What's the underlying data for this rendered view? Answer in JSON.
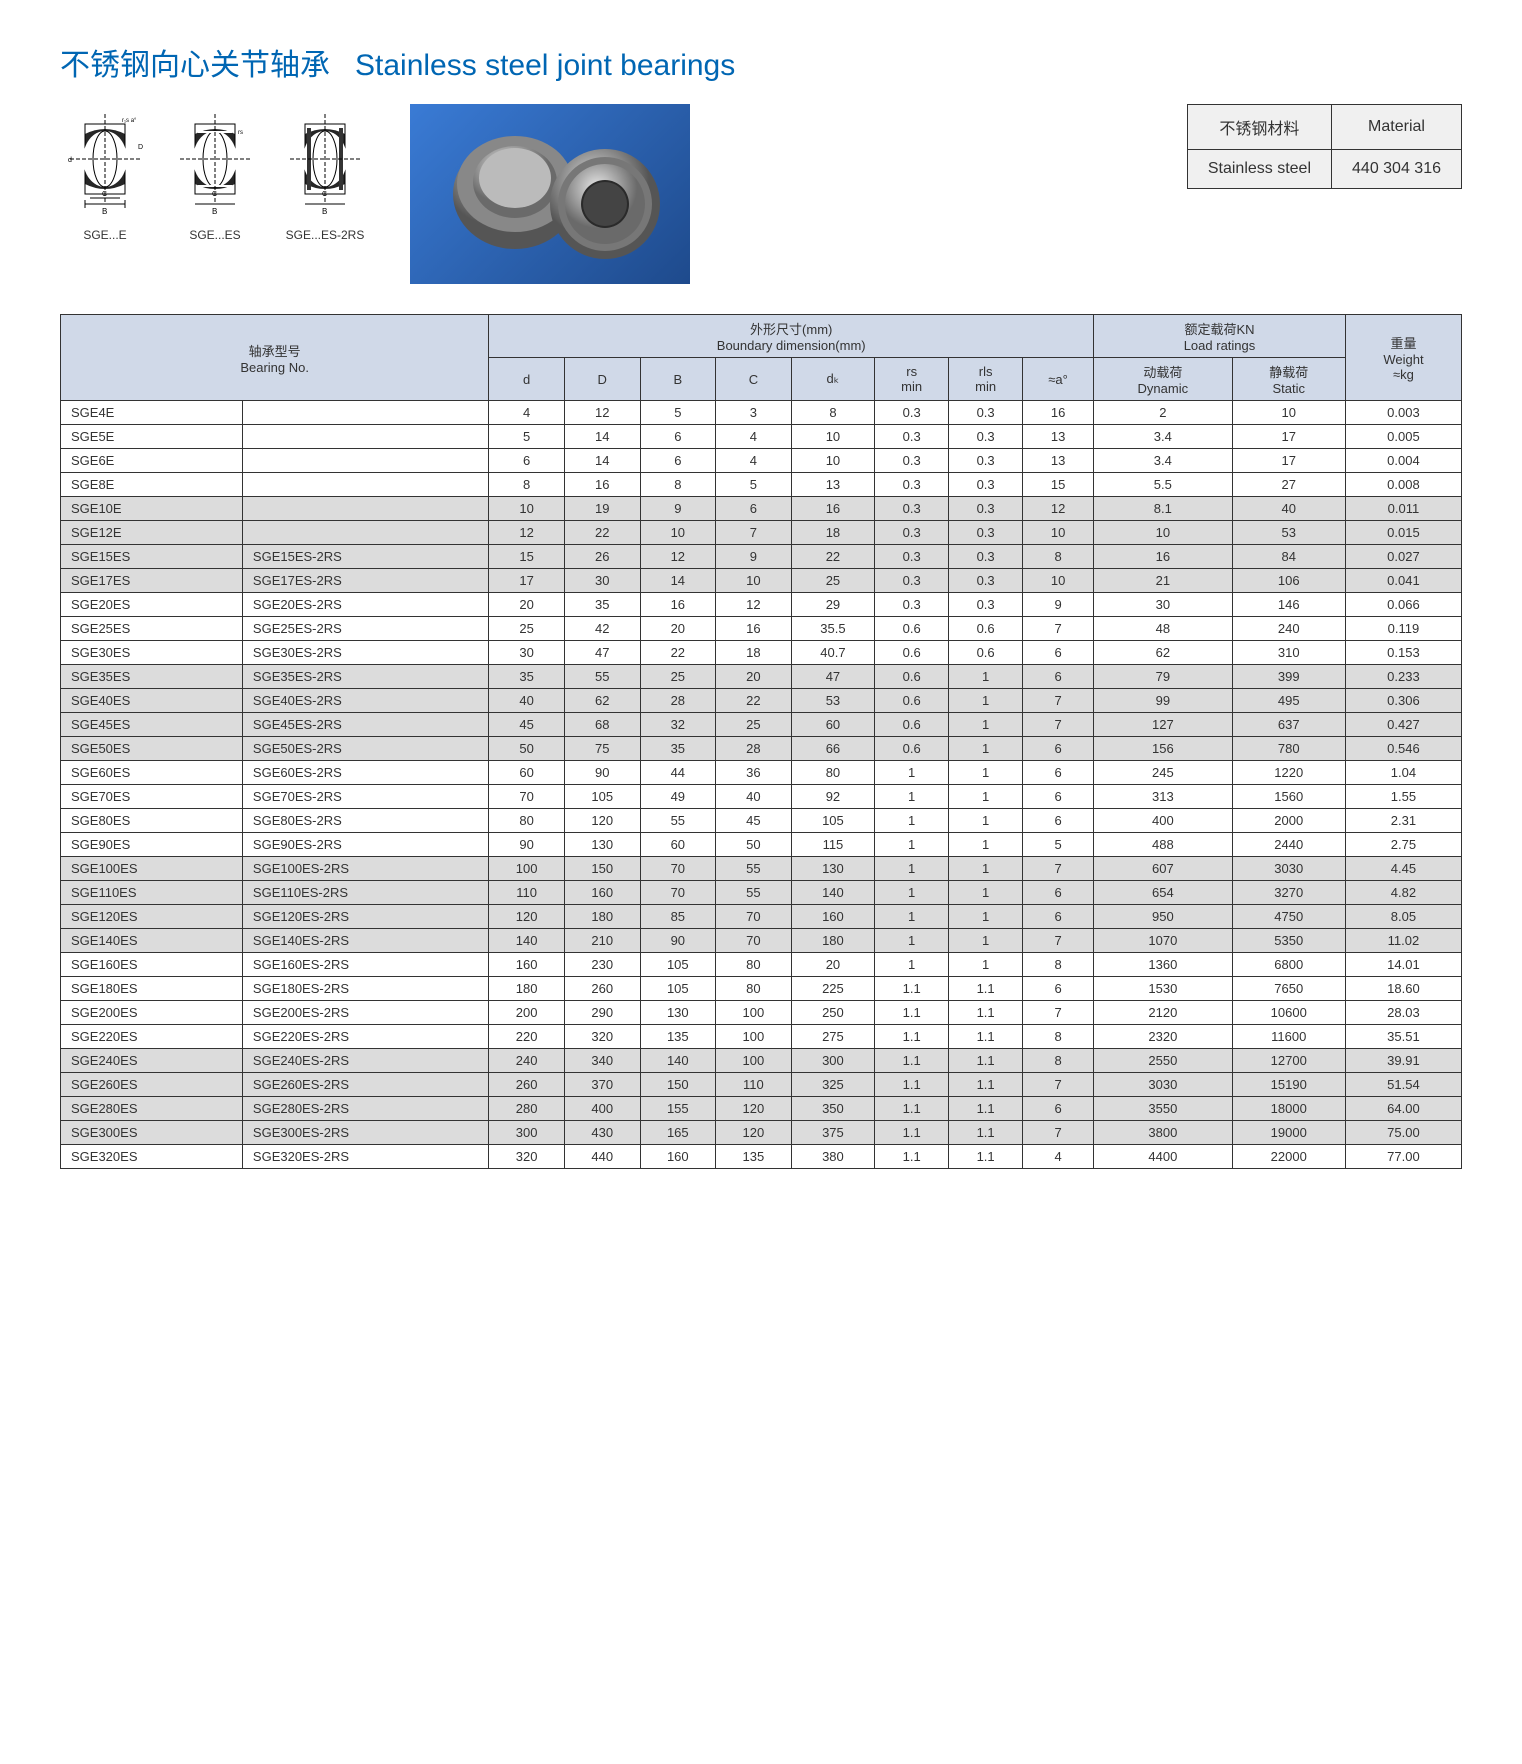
{
  "title_cn": "不锈钢向心关节轴承",
  "title_en": "Stainless steel joint bearings",
  "diagram_captions": [
    "SGE...E",
    "SGE...ES",
    "SGE...ES-2RS"
  ],
  "material_table": {
    "r1c1": "不锈钢材料",
    "r1c2": "Material",
    "r2c1": "Stainless steel",
    "r2c2": "440 304 316"
  },
  "headers": {
    "bearing_cn": "轴承型号",
    "bearing_en": "Bearing No.",
    "boundary_cn": "外形尺寸(mm)",
    "boundary_en": "Boundary dimension(mm)",
    "load_cn": "额定载荷KN",
    "load_en": "Load ratings",
    "weight_cn": "重量",
    "weight_en": "Weight",
    "weight_unit": "≈kg",
    "d": "d",
    "D_": "D",
    "B_": "B",
    "C_": "C",
    "dk": "dₖ",
    "rs_min": "rs min",
    "rls_min": "rls min",
    "a": "≈a°",
    "dynamic_cn": "动载荷",
    "dynamic_en": "Dynamic",
    "static_cn": "静载荷",
    "static_en": "Static"
  },
  "shade_groups": [
    [
      4,
      7
    ],
    [
      11,
      14
    ],
    [
      19,
      22
    ],
    [
      27,
      30
    ]
  ],
  "rows": [
    [
      "SGE4E",
      "",
      "4",
      "12",
      "5",
      "3",
      "8",
      "0.3",
      "0.3",
      "16",
      "2",
      "10",
      "0.003"
    ],
    [
      "SGE5E",
      "",
      "5",
      "14",
      "6",
      "4",
      "10",
      "0.3",
      "0.3",
      "13",
      "3.4",
      "17",
      "0.005"
    ],
    [
      "SGE6E",
      "",
      "6",
      "14",
      "6",
      "4",
      "10",
      "0.3",
      "0.3",
      "13",
      "3.4",
      "17",
      "0.004"
    ],
    [
      "SGE8E",
      "",
      "8",
      "16",
      "8",
      "5",
      "13",
      "0.3",
      "0.3",
      "15",
      "5.5",
      "27",
      "0.008"
    ],
    [
      "SGE10E",
      "",
      "10",
      "19",
      "9",
      "6",
      "16",
      "0.3",
      "0.3",
      "12",
      "8.1",
      "40",
      "0.011"
    ],
    [
      "SGE12E",
      "",
      "12",
      "22",
      "10",
      "7",
      "18",
      "0.3",
      "0.3",
      "10",
      "10",
      "53",
      "0.015"
    ],
    [
      "SGE15ES",
      "SGE15ES-2RS",
      "15",
      "26",
      "12",
      "9",
      "22",
      "0.3",
      "0.3",
      "8",
      "16",
      "84",
      "0.027"
    ],
    [
      "SGE17ES",
      "SGE17ES-2RS",
      "17",
      "30",
      "14",
      "10",
      "25",
      "0.3",
      "0.3",
      "10",
      "21",
      "106",
      "0.041"
    ],
    [
      "SGE20ES",
      "SGE20ES-2RS",
      "20",
      "35",
      "16",
      "12",
      "29",
      "0.3",
      "0.3",
      "9",
      "30",
      "146",
      "0.066"
    ],
    [
      "SGE25ES",
      "SGE25ES-2RS",
      "25",
      "42",
      "20",
      "16",
      "35.5",
      "0.6",
      "0.6",
      "7",
      "48",
      "240",
      "0.119"
    ],
    [
      "SGE30ES",
      "SGE30ES-2RS",
      "30",
      "47",
      "22",
      "18",
      "40.7",
      "0.6",
      "0.6",
      "6",
      "62",
      "310",
      "0.153"
    ],
    [
      "SGE35ES",
      "SGE35ES-2RS",
      "35",
      "55",
      "25",
      "20",
      "47",
      "0.6",
      "1",
      "6",
      "79",
      "399",
      "0.233"
    ],
    [
      "SGE40ES",
      "SGE40ES-2RS",
      "40",
      "62",
      "28",
      "22",
      "53",
      "0.6",
      "1",
      "7",
      "99",
      "495",
      "0.306"
    ],
    [
      "SGE45ES",
      "SGE45ES-2RS",
      "45",
      "68",
      "32",
      "25",
      "60",
      "0.6",
      "1",
      "7",
      "127",
      "637",
      "0.427"
    ],
    [
      "SGE50ES",
      "SGE50ES-2RS",
      "50",
      "75",
      "35",
      "28",
      "66",
      "0.6",
      "1",
      "6",
      "156",
      "780",
      "0.546"
    ],
    [
      "SGE60ES",
      "SGE60ES-2RS",
      "60",
      "90",
      "44",
      "36",
      "80",
      "1",
      "1",
      "6",
      "245",
      "1220",
      "1.04"
    ],
    [
      "SGE70ES",
      "SGE70ES-2RS",
      "70",
      "105",
      "49",
      "40",
      "92",
      "1",
      "1",
      "6",
      "313",
      "1560",
      "1.55"
    ],
    [
      "SGE80ES",
      "SGE80ES-2RS",
      "80",
      "120",
      "55",
      "45",
      "105",
      "1",
      "1",
      "6",
      "400",
      "2000",
      "2.31"
    ],
    [
      "SGE90ES",
      "SGE90ES-2RS",
      "90",
      "130",
      "60",
      "50",
      "115",
      "1",
      "1",
      "5",
      "488",
      "2440",
      "2.75"
    ],
    [
      "SGE100ES",
      "SGE100ES-2RS",
      "100",
      "150",
      "70",
      "55",
      "130",
      "1",
      "1",
      "7",
      "607",
      "3030",
      "4.45"
    ],
    [
      "SGE110ES",
      "SGE110ES-2RS",
      "110",
      "160",
      "70",
      "55",
      "140",
      "1",
      "1",
      "6",
      "654",
      "3270",
      "4.82"
    ],
    [
      "SGE120ES",
      "SGE120ES-2RS",
      "120",
      "180",
      "85",
      "70",
      "160",
      "1",
      "1",
      "6",
      "950",
      "4750",
      "8.05"
    ],
    [
      "SGE140ES",
      "SGE140ES-2RS",
      "140",
      "210",
      "90",
      "70",
      "180",
      "1",
      "1",
      "7",
      "1070",
      "5350",
      "11.02"
    ],
    [
      "SGE160ES",
      "SGE160ES-2RS",
      "160",
      "230",
      "105",
      "80",
      "20",
      "1",
      "1",
      "8",
      "1360",
      "6800",
      "14.01"
    ],
    [
      "SGE180ES",
      "SGE180ES-2RS",
      "180",
      "260",
      "105",
      "80",
      "225",
      "1.1",
      "1.1",
      "6",
      "1530",
      "7650",
      "18.60"
    ],
    [
      "SGE200ES",
      "SGE200ES-2RS",
      "200",
      "290",
      "130",
      "100",
      "250",
      "1.1",
      "1.1",
      "7",
      "2120",
      "10600",
      "28.03"
    ],
    [
      "SGE220ES",
      "SGE220ES-2RS",
      "220",
      "320",
      "135",
      "100",
      "275",
      "1.1",
      "1.1",
      "8",
      "2320",
      "11600",
      "35.51"
    ],
    [
      "SGE240ES",
      "SGE240ES-2RS",
      "240",
      "340",
      "140",
      "100",
      "300",
      "1.1",
      "1.1",
      "8",
      "2550",
      "12700",
      "39.91"
    ],
    [
      "SGE260ES",
      "SGE260ES-2RS",
      "260",
      "370",
      "150",
      "110",
      "325",
      "1.1",
      "1.1",
      "7",
      "3030",
      "15190",
      "51.54"
    ],
    [
      "SGE280ES",
      "SGE280ES-2RS",
      "280",
      "400",
      "155",
      "120",
      "350",
      "1.1",
      "1.1",
      "6",
      "3550",
      "18000",
      "64.00"
    ],
    [
      "SGE300ES",
      "SGE300ES-2RS",
      "300",
      "430",
      "165",
      "120",
      "375",
      "1.1",
      "1.1",
      "7",
      "3800",
      "19000",
      "75.00"
    ],
    [
      "SGE320ES",
      "SGE320ES-2RS",
      "320",
      "440",
      "160",
      "135",
      "380",
      "1.1",
      "1.1",
      "4",
      "4400",
      "22000",
      "77.00"
    ]
  ]
}
